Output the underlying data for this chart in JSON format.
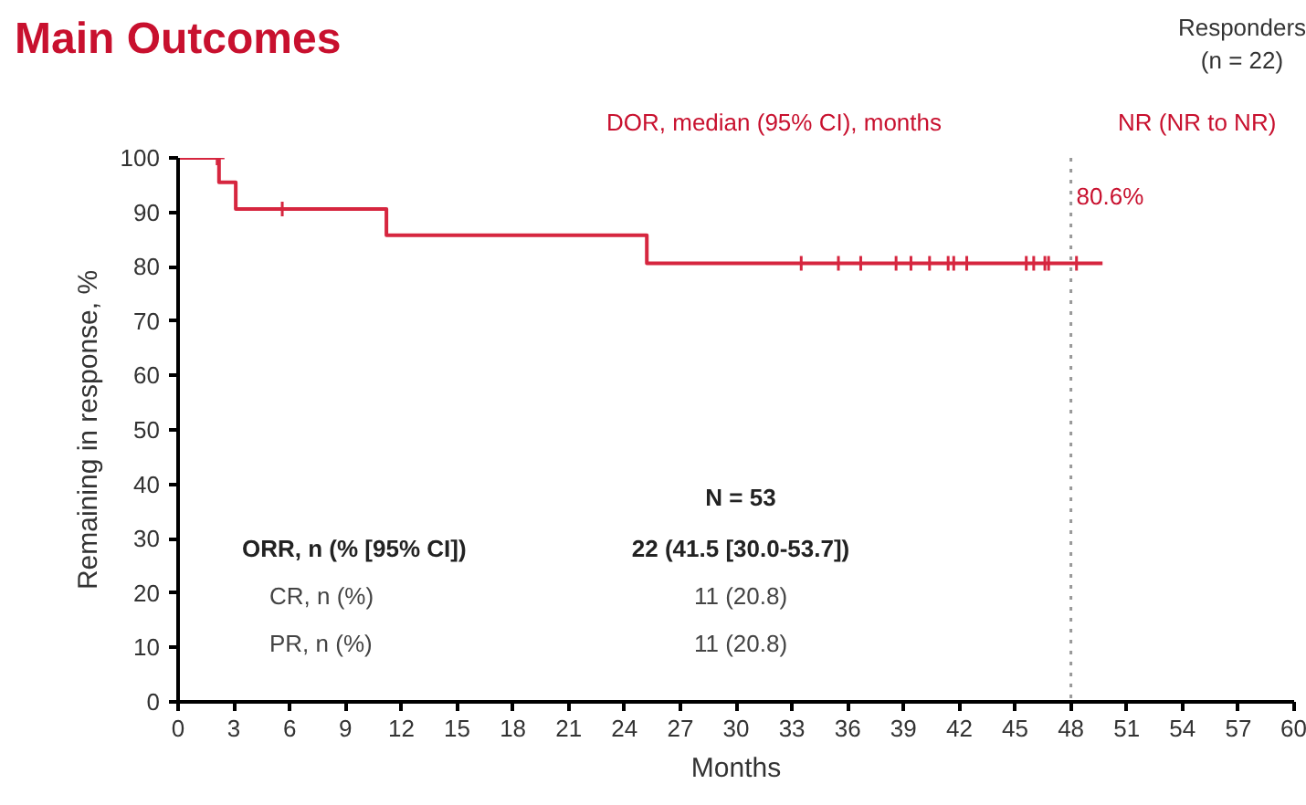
{
  "chart_data": {
    "type": "step",
    "title": "Main Outcomes",
    "xlabel": "Months",
    "ylabel": "Remaining in response, %",
    "xlim": [
      0,
      60
    ],
    "xticks": [
      0,
      3,
      6,
      9,
      12,
      15,
      18,
      21,
      24,
      27,
      30,
      33,
      36,
      39,
      42,
      45,
      48,
      51,
      54,
      57,
      60
    ],
    "ylim": [
      0,
      100
    ],
    "yticks": [
      0,
      10,
      20,
      30,
      40,
      50,
      60,
      70,
      80,
      90,
      100
    ],
    "grid": false,
    "series": [
      {
        "color": "#d6263f",
        "x": [
          0,
          2.2,
          3.1,
          11.2,
          25.2,
          49.7
        ],
        "values": [
          100,
          95.5,
          90.6,
          85.8,
          80.6,
          80.6
        ]
      },
      {
        "type": "scatter",
        "marker": "cross",
        "color": "#d6263f",
        "x": [
          2.1,
          5.6,
          33.5,
          35.5,
          36.7,
          38.6,
          39.4,
          40.4,
          41.4,
          41.7,
          42.4,
          45.6,
          46.0,
          46.6,
          46.8,
          48.3
        ],
        "values": [
          100,
          90.6,
          80.6,
          80.6,
          80.6,
          80.6,
          80.6,
          80.6,
          80.6,
          80.6,
          80.6,
          80.6,
          80.6,
          80.6,
          80.6,
          80.6
        ]
      }
    ],
    "ref_lines": [
      {
        "axis": "x",
        "value": 48,
        "color": "#999999",
        "line_style": "dotted"
      }
    ],
    "annotations": [
      "Responders",
      "(n = 22)",
      "DOR, median (95% CI), months",
      "NR (NR to NR)",
      "N = 53",
      "ORR, n (% [95% CI])",
      "22 (41.5 [30.0-53.7])",
      "CR, n (%)",
      "11 (20.8)",
      "PR, n (%)",
      "11 (20.8)",
      {
        "text": "80.6%",
        "x": 48,
        "y": 80.6
      }
    ]
  }
}
